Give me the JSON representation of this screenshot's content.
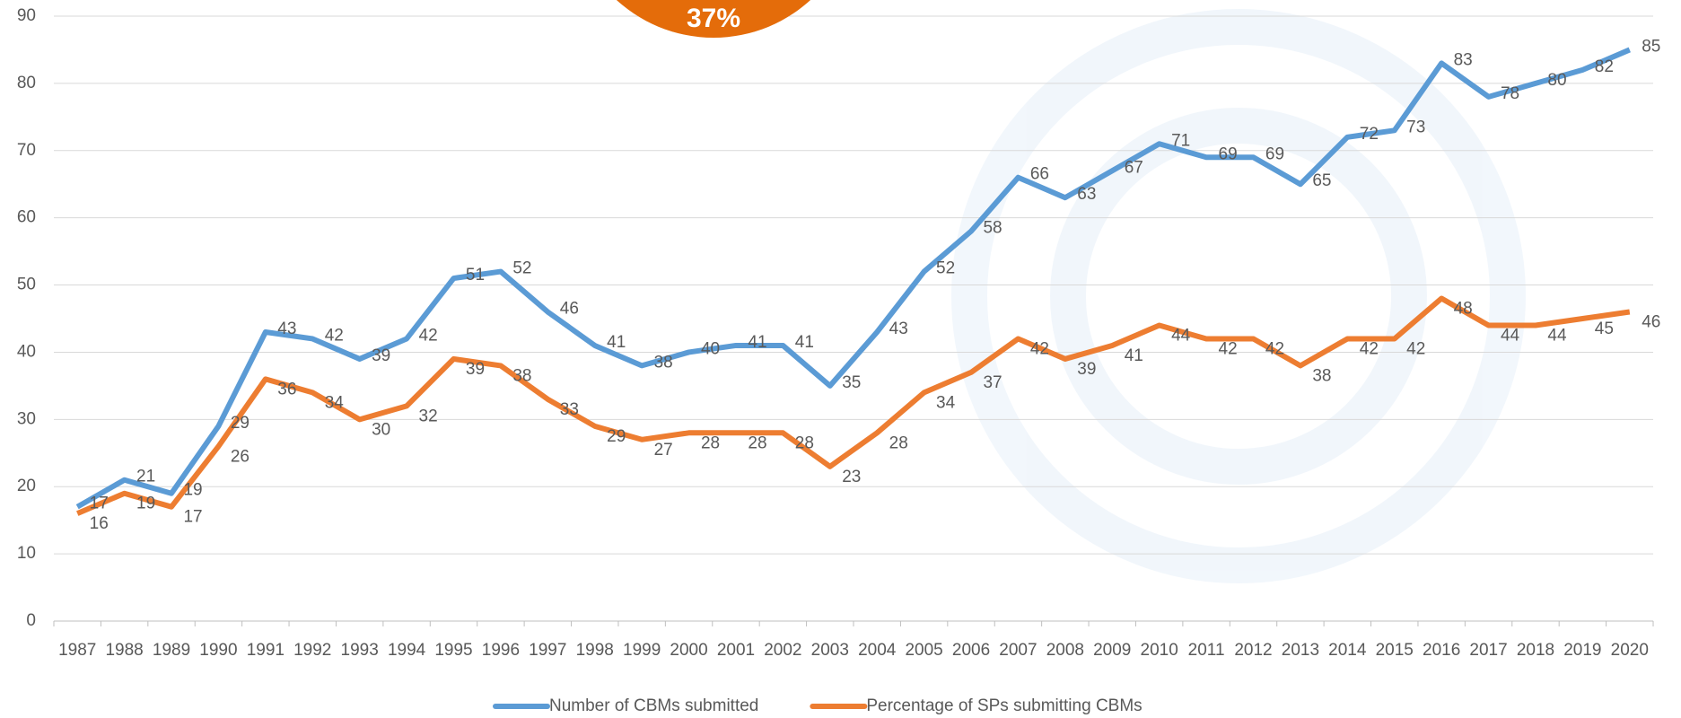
{
  "chart_data": {
    "type": "line",
    "badge": "37%",
    "categories": [
      "1987",
      "1988",
      "1989",
      "1990",
      "1991",
      "1992",
      "1993",
      "1994",
      "1995",
      "1996",
      "1997",
      "1998",
      "1999",
      "2000",
      "2001",
      "2002",
      "2003",
      "2004",
      "2005",
      "2006",
      "2007",
      "2008",
      "2009",
      "2010",
      "2011",
      "2012",
      "2013",
      "2014",
      "2015",
      "2016",
      "2017",
      "2018",
      "2019",
      "2020"
    ],
    "series": [
      {
        "name": "Number of CBMs submitted",
        "color": "#5b9bd5",
        "values": [
          17,
          21,
          19,
          29,
          43,
          42,
          39,
          42,
          51,
          52,
          46,
          41,
          38,
          40,
          41,
          41,
          35,
          43,
          52,
          58,
          66,
          63,
          67,
          71,
          69,
          69,
          65,
          72,
          73,
          83,
          78,
          80,
          82,
          85
        ]
      },
      {
        "name": "Percentage of SPs submitting CBMs",
        "color": "#ed7d31",
        "values": [
          16,
          19,
          17,
          26,
          36,
          34,
          30,
          32,
          39,
          38,
          33,
          29,
          27,
          28,
          28,
          28,
          23,
          28,
          34,
          37,
          42,
          39,
          41,
          44,
          42,
          42,
          38,
          42,
          42,
          48,
          44,
          44,
          45,
          46
        ]
      }
    ],
    "ylim": [
      0,
      90
    ],
    "yticks": [
      0,
      10,
      20,
      30,
      40,
      50,
      60,
      70,
      80,
      90
    ],
    "grid": true
  }
}
